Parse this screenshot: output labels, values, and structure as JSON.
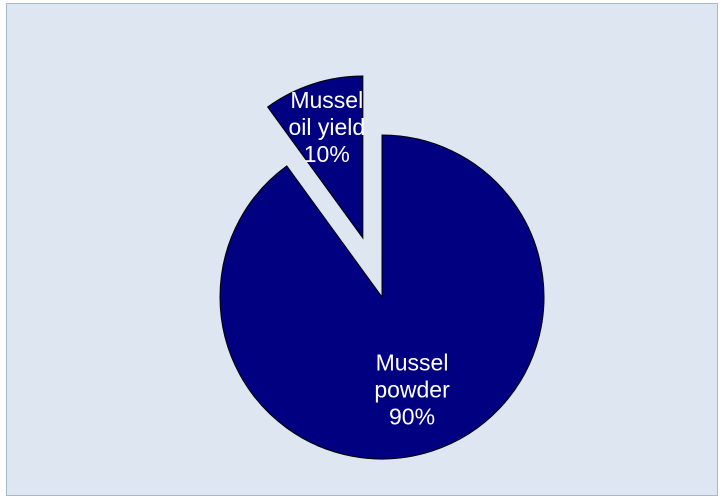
{
  "chart_data": {
    "type": "pie",
    "title": "",
    "slices": [
      {
        "label_lines": [
          "Mussel",
          "oil yield",
          "10%"
        ],
        "value": 10,
        "exploded": true,
        "color": "#000080"
      },
      {
        "label_lines": [
          "Mussel",
          "powder",
          "90%"
        ],
        "value": 90,
        "exploded": false,
        "color": "#000080"
      }
    ]
  }
}
